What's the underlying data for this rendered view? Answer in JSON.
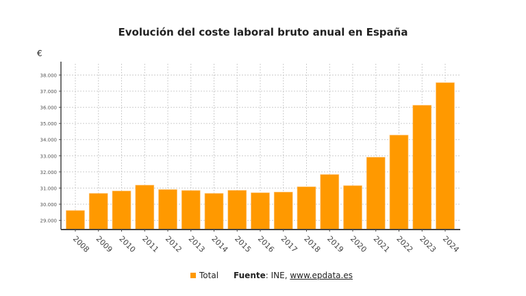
{
  "chart_data": {
    "type": "bar",
    "title": "Evolución del coste laboral bruto anual en España",
    "ylabel": "€",
    "xlabel": "",
    "categories": [
      "2008",
      "2009",
      "2010",
      "2011",
      "2012",
      "2013",
      "2014",
      "2015",
      "2016",
      "2017",
      "2018",
      "2019",
      "2020",
      "2021",
      "2022",
      "2023",
      "2024"
    ],
    "series": [
      {
        "name": "Total",
        "color": "#ff9900",
        "values": [
          29610,
          30670,
          30820,
          31180,
          30910,
          30850,
          30670,
          30860,
          30710,
          30750,
          31080,
          31840,
          31150,
          32910,
          34280,
          36130,
          37530
        ]
      }
    ],
    "yticks": [
      29000,
      30000,
      31000,
      32000,
      33000,
      34000,
      35000,
      36000,
      37000,
      38000
    ],
    "ytick_labels": [
      "29.000",
      "30.000",
      "31.000",
      "32.000",
      "33.000",
      "34.000",
      "35.000",
      "36.000",
      "37.000",
      "38.000"
    ],
    "ylim": [
      28430,
      38700
    ],
    "grid": true,
    "legend_placement": "bottom"
  },
  "source": {
    "label": "Fuente",
    "text": ": INE, ",
    "link": "www.epdata.es"
  }
}
